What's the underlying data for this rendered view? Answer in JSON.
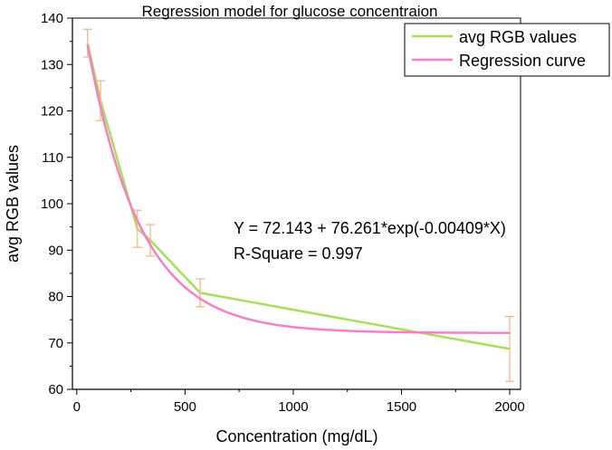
{
  "chart_data": {
    "type": "line",
    "title": "Regression model for glucose concentraion",
    "xlabel": "Concentration (mg/dL)",
    "ylabel": "avg RGB values",
    "xlim": [
      -20,
      2050
    ],
    "ylim": [
      60,
      140
    ],
    "xticks": [
      0,
      500,
      1000,
      1500,
      2000
    ],
    "yticks": [
      60,
      70,
      80,
      90,
      100,
      110,
      120,
      130,
      140
    ],
    "grid": false,
    "legend_position": "top-right",
    "series": [
      {
        "name": "avg RGB values",
        "color": "#a6e05a",
        "x": [
          50,
          110,
          280,
          340,
          570,
          2000
        ],
        "y": [
          134.6,
          122.2,
          94.6,
          92.1,
          80.8,
          68.7
        ],
        "error": [
          3.0,
          4.3,
          4.0,
          3.4,
          3.0,
          7.0
        ],
        "error_color": "#f2b98a"
      },
      {
        "name": "Regression curve",
        "color": "#f77fc6",
        "function": "exp_decay",
        "params": {
          "a": 72.143,
          "b": 76.261,
          "k": -0.00409
        },
        "x_range": [
          50,
          2000
        ]
      }
    ],
    "annotations": [
      "Y = 72.143 + 76.261*exp(-0.00409*X)",
      "R-Square = 0.997"
    ]
  }
}
